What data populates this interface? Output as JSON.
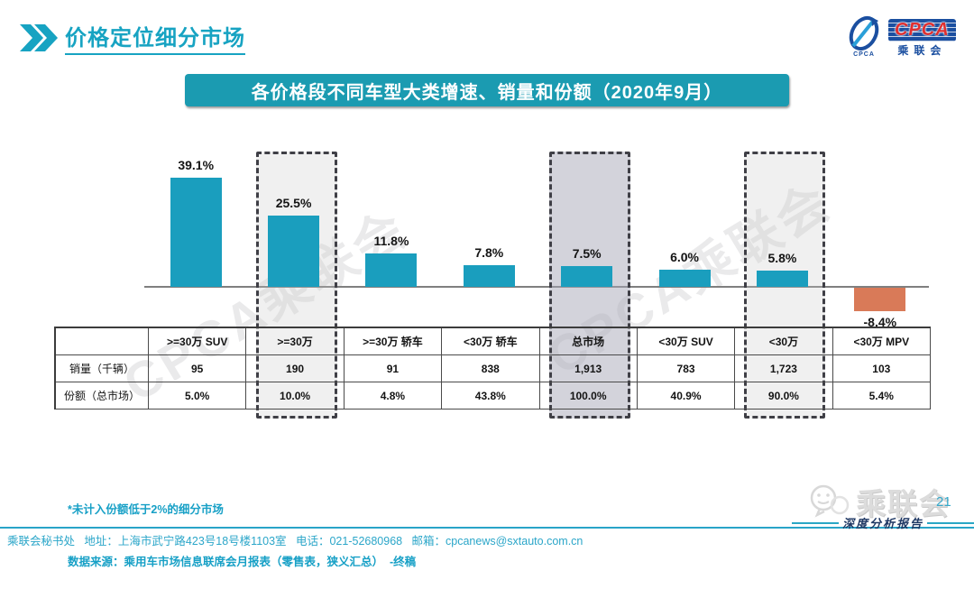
{
  "page": {
    "title": "价格定位细分市场",
    "page_number": "21",
    "report_watermark": "深度分析报告",
    "chart_watermark": "CPCA乘联会",
    "brand_watermark": "乘联会"
  },
  "logo": {
    "acronym": "CPCA",
    "cn": "乘联会",
    "icon_caption": "CPCA"
  },
  "banner": {
    "title": "各价格段不同车型大类增速、销量和份额（2020年9月）"
  },
  "chart_data": {
    "type": "bar",
    "title": "各价格段不同车型大类增速、销量和份额（2020年9月）",
    "unit": "%",
    "categories": [
      ">=30万 SUV",
      ">=30万",
      ">=30万 轿车",
      "<30万 轿车",
      "总市场",
      "<30万 SUV",
      "<30万",
      "<30万 MPV"
    ],
    "values": [
      39.1,
      25.5,
      11.8,
      7.8,
      7.5,
      6.0,
      5.8,
      -8.4
    ],
    "value_labels": [
      "39.1%",
      "25.5%",
      "11.8%",
      "7.8%",
      "7.5%",
      "6.0%",
      "5.8%",
      "-8.4%"
    ],
    "baseline": 0,
    "grid": false,
    "bar_color_positive": "#1A9EBE",
    "bar_color_negative": "#D97A58",
    "highlights": [
      {
        "category": ">=30万",
        "index": 1,
        "fill": "rgba(200,200,200,0.28)"
      },
      {
        "category": "总市场",
        "index": 4,
        "fill": "rgba(168,168,184,0.50)"
      },
      {
        "category": "<30万",
        "index": 6,
        "fill": "rgba(200,200,200,0.28)"
      }
    ],
    "table": {
      "row_headers": [
        "销量（千辆）",
        "份额（总市场）"
      ],
      "rows": [
        [
          "95",
          "190",
          "91",
          "838",
          "1,913",
          "783",
          "1,723",
          "103"
        ],
        [
          "5.0%",
          "10.0%",
          "4.8%",
          "43.8%",
          "100.0%",
          "40.9%",
          "90.0%",
          "5.4%"
        ]
      ]
    }
  },
  "notes": {
    "line1": "*未计入份额低于2%的细分市场",
    "line2": "数据来源：乘用车市场信息联席会月报表（零售表，狭义汇总）  -终稿"
  },
  "footer": {
    "text": "乘联会秘书处   地址：上海市武宁路423号18号楼1103室   电话：021-52680968   邮箱：cpcanews@sxtauto.com.cn"
  }
}
